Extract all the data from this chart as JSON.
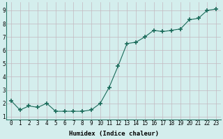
{
  "x": [
    0,
    1,
    2,
    3,
    4,
    5,
    6,
    7,
    8,
    9,
    10,
    11,
    12,
    13,
    14,
    15,
    16,
    17,
    18,
    19,
    20,
    21,
    22,
    23
  ],
  "y": [
    2.2,
    1.5,
    1.8,
    1.7,
    2.0,
    1.4,
    1.4,
    1.4,
    1.4,
    1.5,
    2.0,
    3.2,
    4.8,
    6.5,
    6.6,
    7.0,
    7.5,
    7.4,
    7.5,
    7.6,
    8.3,
    8.4,
    9.0,
    9.1
  ],
  "xlabel": "Humidex (Indice chaleur)",
  "ylim": [
    0.8,
    9.6
  ],
  "xlim": [
    -0.5,
    23.5
  ],
  "yticks": [
    1,
    2,
    3,
    4,
    5,
    6,
    7,
    8,
    9
  ],
  "xticks": [
    0,
    1,
    2,
    3,
    4,
    5,
    6,
    7,
    8,
    9,
    10,
    11,
    12,
    13,
    14,
    15,
    16,
    17,
    18,
    19,
    20,
    21,
    22,
    23
  ],
  "line_color": "#1a6b5a",
  "marker_color": "#1a6b5a",
  "bg_color": "#d4eeed",
  "grid_color": "#c4b8c0",
  "xlabel_fontsize": 6.5,
  "tick_fontsize": 5.5
}
